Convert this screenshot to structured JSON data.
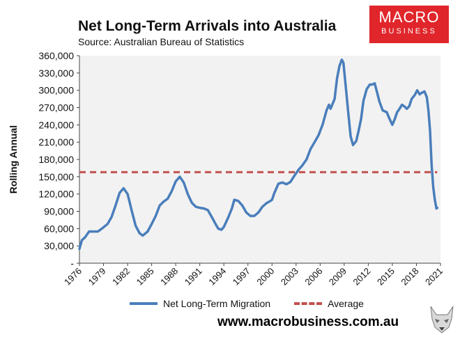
{
  "title": "Net Long-Term Arrivals into Australia",
  "subtitle": "Source: Australian Bureau of Statistics",
  "logo": {
    "line1": "MACRO",
    "line2": "BUSINESS",
    "bg_color": "#e0262b"
  },
  "website": "www.macrobusiness.com.au",
  "legend": {
    "series1": "Net Long-Term Migration",
    "series2": "Average"
  },
  "colors": {
    "series": "#4a7ebb",
    "average": "#c0504d",
    "plot_bg": "#f2f2f2"
  },
  "icons": {
    "mascot": "wolf-head-icon"
  },
  "chart_data": {
    "type": "line",
    "title": "Net Long-Term Arrivals into Australia",
    "subtitle": "Source: Australian Bureau of Statistics",
    "ylabel": "Rolling Annual",
    "xlabel": "",
    "ylim": [
      0,
      360000
    ],
    "xlim": [
      1976,
      2021
    ],
    "yticks": [
      "-",
      "30,000",
      "60,000",
      "90,000",
      "120,000",
      "150,000",
      "180,000",
      "210,000",
      "240,000",
      "270,000",
      "300,000",
      "330,000",
      "360,000"
    ],
    "xticks": [
      "1976",
      "1979",
      "1982",
      "1985",
      "1988",
      "1991",
      "1994",
      "1997",
      "2000",
      "2003",
      "2006",
      "2009",
      "2012",
      "2015",
      "2018",
      "2021"
    ],
    "grid": false,
    "legend_position": "bottom",
    "series": [
      {
        "name": "Net Long-Term Migration",
        "x": [
          1976.0,
          1976.3,
          1976.7,
          1977.2,
          1977.8,
          1978.3,
          1978.8,
          1979.5,
          1980.0,
          1980.5,
          1981.0,
          1981.5,
          1982.0,
          1982.5,
          1983.0,
          1983.5,
          1983.9,
          1984.5,
          1985.0,
          1985.5,
          1986.0,
          1986.5,
          1987.0,
          1987.5,
          1988.0,
          1988.5,
          1989.0,
          1989.5,
          1990.0,
          1990.5,
          1991.0,
          1991.5,
          1992.0,
          1992.5,
          1993.0,
          1993.3,
          1993.7,
          1994.0,
          1994.5,
          1995.0,
          1995.3,
          1995.8,
          1996.3,
          1996.8,
          1997.3,
          1997.8,
          1998.3,
          1998.8,
          1999.3,
          1999.8,
          2000.0,
          2000.3,
          2000.8,
          2001.3,
          2001.8,
          2002.3,
          2002.8,
          2003.3,
          2003.8,
          2004.3,
          2004.8,
          2005.3,
          2005.8,
          2006.3,
          2006.8,
          2007.1,
          2007.3,
          2007.8,
          2008.1,
          2008.4,
          2008.7,
          2008.9,
          2009.2,
          2009.5,
          2009.8,
          2010.1,
          2010.5,
          2010.8,
          2011.1,
          2011.4,
          2011.8,
          2012.2,
          2012.5,
          2012.8,
          2013.1,
          2013.4,
          2013.8,
          2014.3,
          2014.6,
          2015.0,
          2015.3,
          2015.6,
          2015.9,
          2016.2,
          2016.5,
          2016.8,
          2017.1,
          2017.4,
          2017.8,
          2018.1,
          2018.4,
          2018.7,
          2019.0,
          2019.3,
          2019.5,
          2019.7,
          2019.9,
          2020.1,
          2020.3,
          2020.5,
          2020.6
        ],
        "values": [
          25000,
          40000,
          45000,
          55000,
          55000,
          55000,
          60000,
          68000,
          80000,
          100000,
          122000,
          130000,
          120000,
          92000,
          65000,
          52000,
          48000,
          55000,
          68000,
          82000,
          100000,
          107000,
          112000,
          125000,
          142000,
          150000,
          140000,
          120000,
          105000,
          98000,
          96000,
          95000,
          92000,
          80000,
          67000,
          60000,
          58000,
          63000,
          78000,
          95000,
          110000,
          108000,
          100000,
          88000,
          82000,
          82000,
          88000,
          98000,
          104000,
          108000,
          110000,
          122000,
          138000,
          140000,
          137000,
          141000,
          152000,
          162000,
          170000,
          180000,
          198000,
          210000,
          222000,
          240000,
          265000,
          275000,
          268000,
          285000,
          320000,
          342000,
          353000,
          348000,
          305000,
          262000,
          220000,
          205000,
          212000,
          230000,
          250000,
          282000,
          302000,
          310000,
          310000,
          312000,
          296000,
          280000,
          265000,
          262000,
          252000,
          240000,
          250000,
          262000,
          268000,
          275000,
          272000,
          268000,
          272000,
          285000,
          292000,
          300000,
          293000,
          296000,
          298000,
          288000,
          265000,
          230000,
          170000,
          132000,
          110000,
          95000,
          96000
        ]
      },
      {
        "name": "Average",
        "x": [
          1976,
          2020.6
        ],
        "values": [
          158000,
          158000
        ]
      }
    ]
  }
}
